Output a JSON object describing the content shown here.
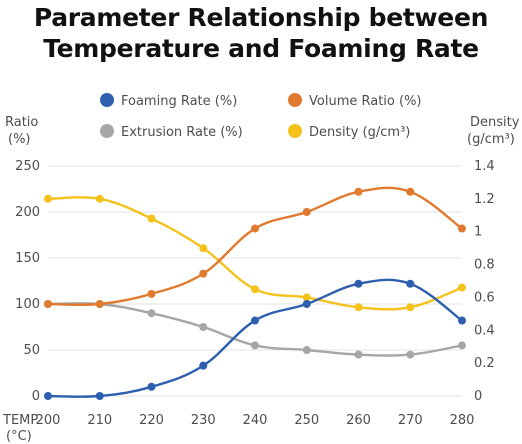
{
  "title_lines": [
    "Parameter Relationship between",
    "Temperature and Foaming Rate"
  ],
  "chart_data": {
    "type": "line",
    "title": "Parameter Relationship between Temperature and Foaming Rate",
    "x_label": "TEMP (°C)",
    "x": [
      200,
      210,
      220,
      230,
      240,
      250,
      260,
      270,
      280
    ],
    "y_left": {
      "label": "Ratio (%)",
      "range": [
        0,
        250
      ],
      "ticks": [
        0,
        50,
        100,
        150,
        200,
        250
      ]
    },
    "y_right": {
      "label": "Density (g/cm³)",
      "range": [
        0,
        1.4
      ],
      "ticks": [
        "0",
        "0.2",
        "0.4",
        "0.6",
        "0.8",
        "1",
        "1.2",
        "1.4"
      ]
    },
    "grid": true,
    "legend_position": "top",
    "series": [
      {
        "name": "Foaming Rate (%)",
        "axis": "left",
        "color": "#2e5fae",
        "values": [
          0,
          0,
          10,
          33,
          82,
          100,
          122,
          122,
          82
        ]
      },
      {
        "name": "Volume Ratio (%)",
        "axis": "left",
        "color": "#e07a2e",
        "values": [
          100,
          100,
          111,
          133,
          182,
          200,
          222,
          222,
          182
        ]
      },
      {
        "name": "Extrusion Rate (%)",
        "axis": "left",
        "color": "#a6a6a6",
        "values": [
          100,
          100,
          90,
          75,
          55,
          50,
          45,
          45,
          55
        ]
      },
      {
        "name": "Density (g/cm³)",
        "axis": "right",
        "color": "#f5c21b",
        "values": [
          1.2,
          1.2,
          1.08,
          0.9,
          0.65,
          0.6,
          0.54,
          0.54,
          0.66
        ]
      }
    ]
  },
  "labels": {
    "left_axis_line1": "Ratio",
    "left_axis_line2": "(%)",
    "right_axis_line1": "Density",
    "right_axis_line2": "(g/cm³)",
    "temp_label": "TEMP",
    "temp_unit": "(°C)"
  }
}
